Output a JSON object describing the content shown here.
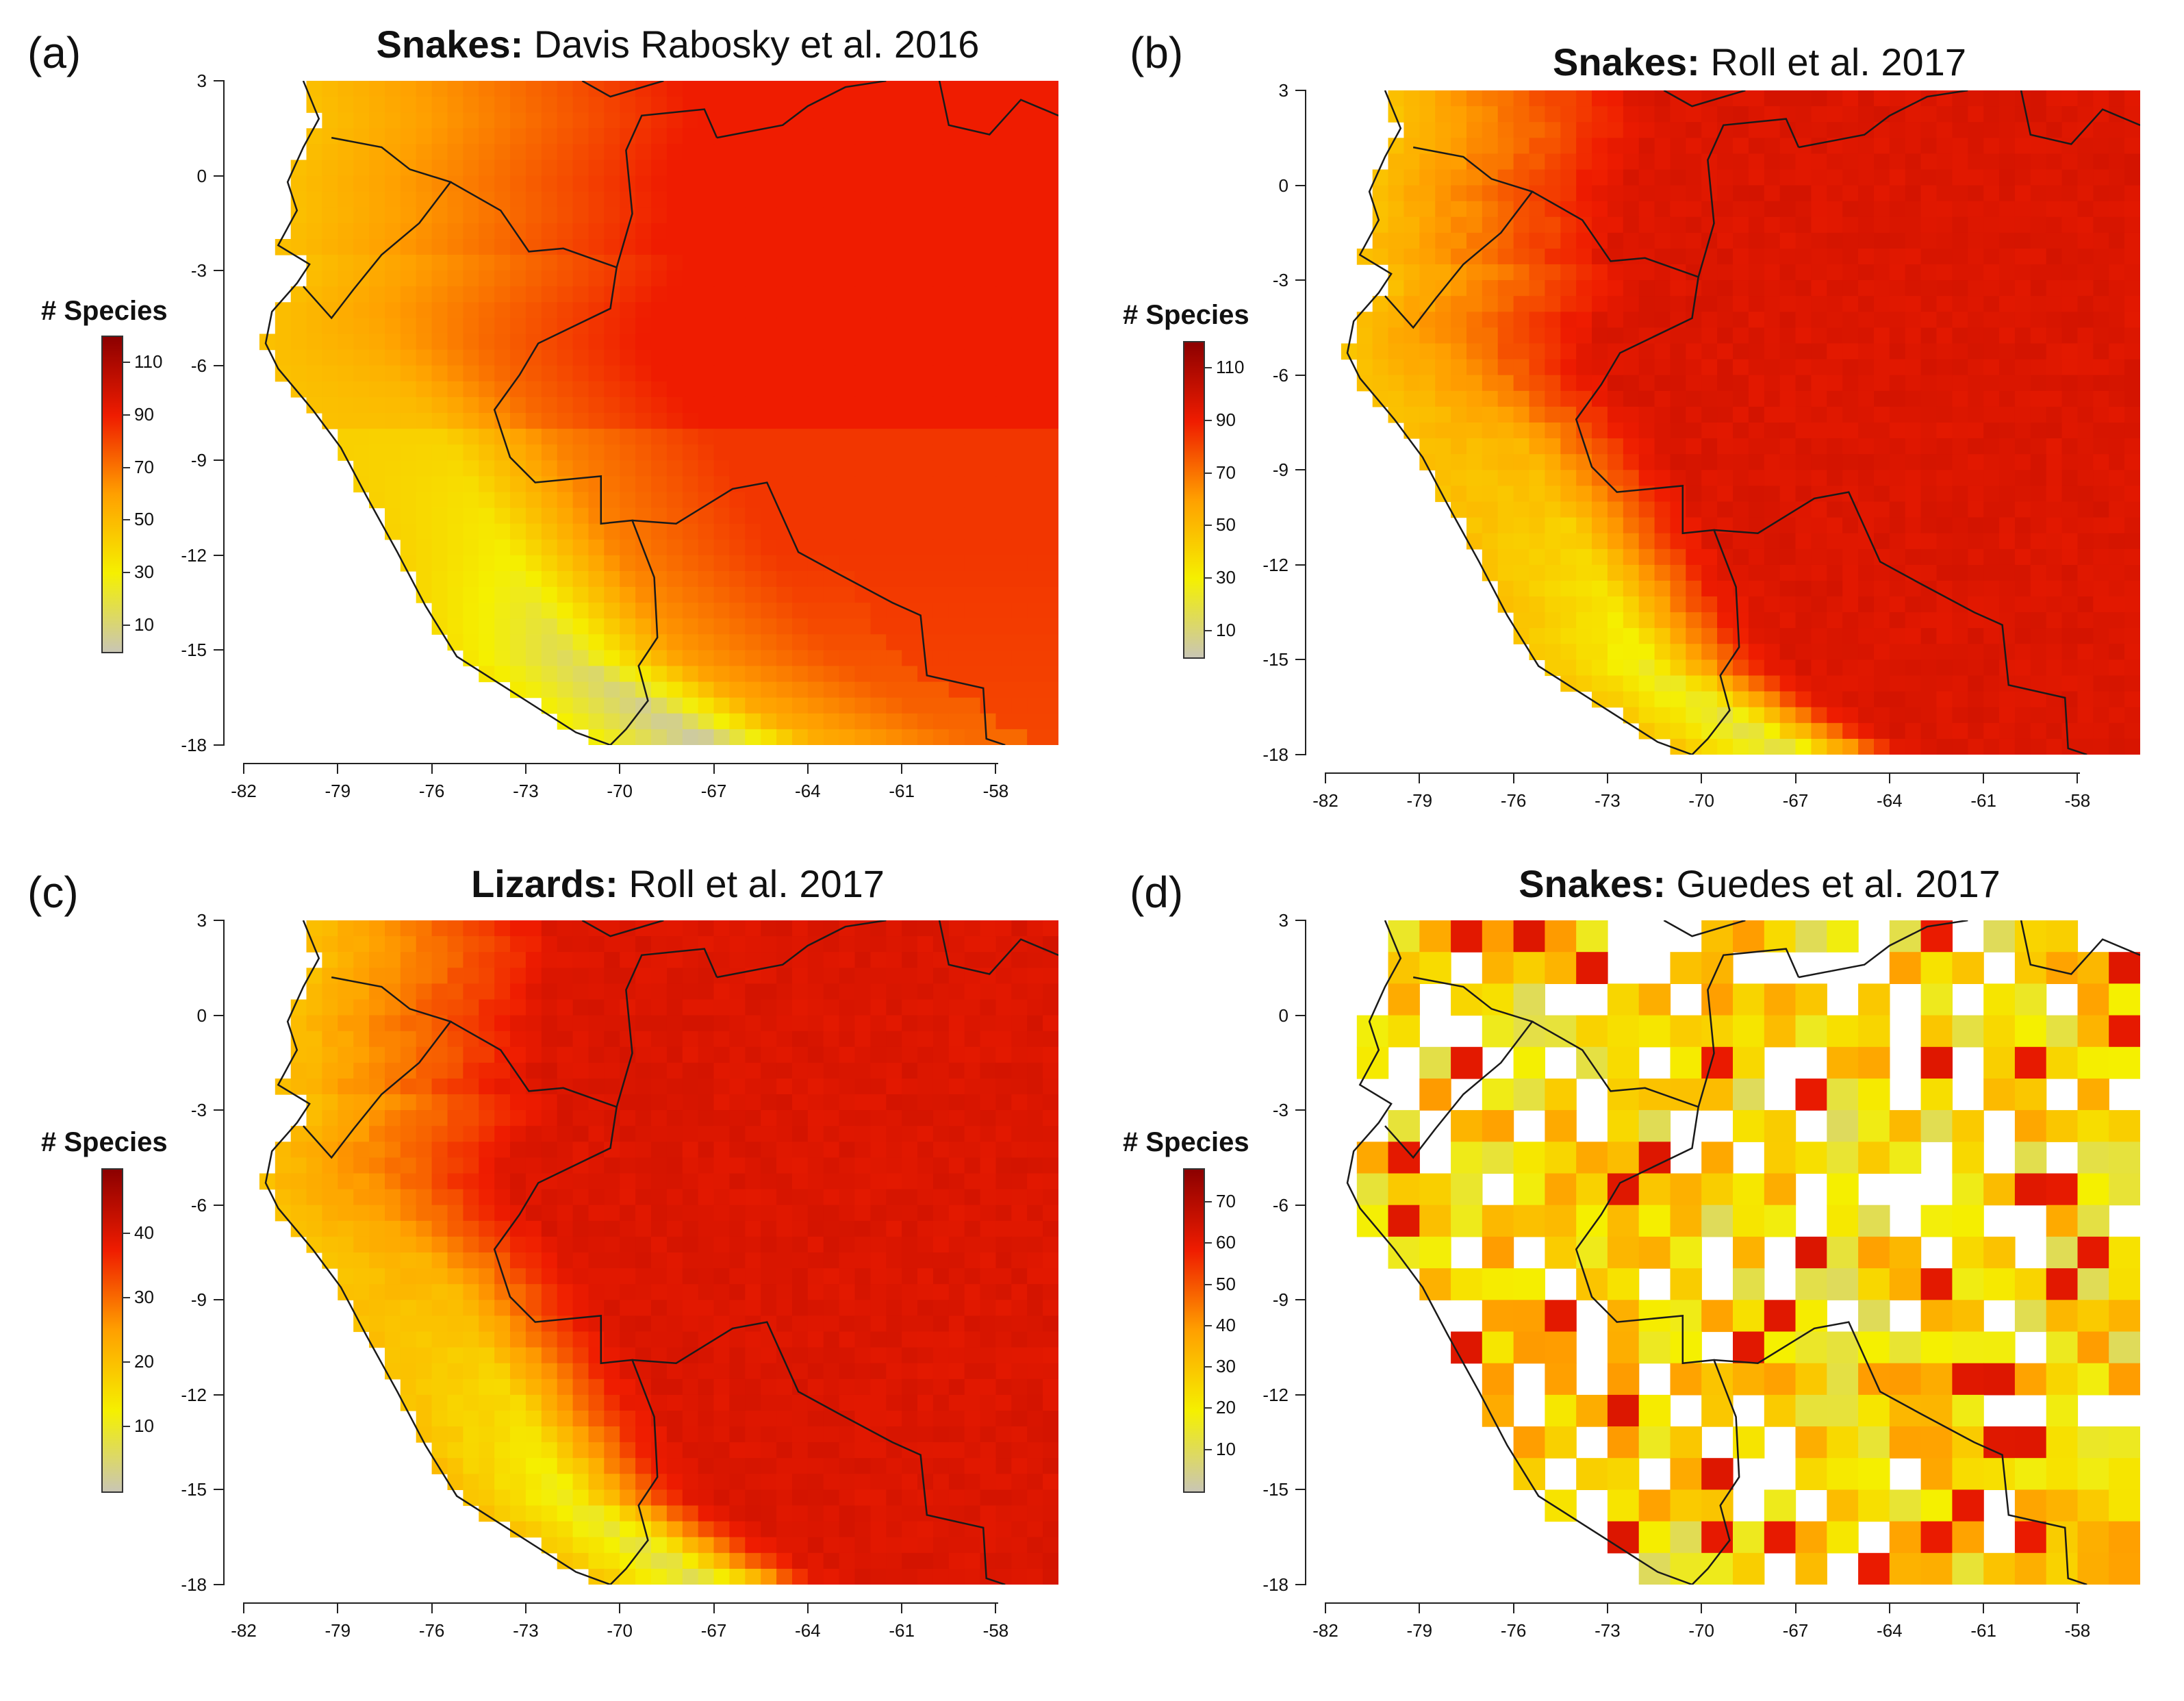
{
  "figure": {
    "panels": [
      {
        "id": "a",
        "label": "(a)",
        "taxon": "Snakes:",
        "source": "Davis Rabosky et al. 2016",
        "legend_title": "# Species",
        "legend_ticks": [
          "110",
          "90",
          "70",
          "50",
          "30",
          "10"
        ],
        "legend_values": [
          110,
          90,
          70,
          50,
          30,
          10
        ],
        "legend_range": [
          0,
          120
        ],
        "style": "smooth",
        "x_ticks": [
          "-82",
          "-79",
          "-76",
          "-73",
          "-70",
          "-67",
          "-64",
          "-61",
          "-58"
        ],
        "y_ticks": [
          "3",
          "0",
          "-3",
          "-6",
          "-9",
          "-12",
          "-15",
          "-18"
        ],
        "xlim": [
          -82,
          -56
        ],
        "ylim": [
          -18,
          3
        ]
      },
      {
        "id": "b",
        "label": "(b)",
        "taxon": "Snakes:",
        "source": "Roll et al. 2017",
        "legend_title": "# Species",
        "legend_ticks": [
          "110",
          "90",
          "70",
          "50",
          "30",
          "10"
        ],
        "legend_values": [
          110,
          90,
          70,
          50,
          30,
          10
        ],
        "legend_range": [
          0,
          120
        ],
        "style": "smooth-red",
        "x_ticks": [
          "-82",
          "-79",
          "-76",
          "-73",
          "-70",
          "-67",
          "-64",
          "-61",
          "-58"
        ],
        "y_ticks": [
          "3",
          "0",
          "-3",
          "-6",
          "-9",
          "-12",
          "-15",
          "-18"
        ],
        "xlim": [
          -82,
          -56
        ],
        "ylim": [
          -18,
          3
        ]
      },
      {
        "id": "c",
        "label": "(c)",
        "taxon": "Lizards:",
        "source": "Roll et al. 2017",
        "legend_title": "# Species",
        "legend_ticks": [
          "40",
          "30",
          "20",
          "10"
        ],
        "legend_values": [
          40,
          30,
          20,
          10
        ],
        "legend_range": [
          0,
          50
        ],
        "style": "smooth-red",
        "x_ticks": [
          "-82",
          "-79",
          "-76",
          "-73",
          "-70",
          "-67",
          "-64",
          "-61",
          "-58"
        ],
        "y_ticks": [
          "3",
          "0",
          "-3",
          "-6",
          "-9",
          "-12",
          "-15",
          "-18"
        ],
        "xlim": [
          -82,
          -56
        ],
        "ylim": [
          -18,
          3
        ]
      },
      {
        "id": "d",
        "label": "(d)",
        "taxon": "Snakes:",
        "source": "Guedes et al. 2017",
        "legend_title": "# Species",
        "legend_ticks": [
          "70",
          "60",
          "50",
          "40",
          "30",
          "20",
          "10"
        ],
        "legend_values": [
          70,
          60,
          50,
          40,
          30,
          20,
          10
        ],
        "legend_range": [
          0,
          78
        ],
        "style": "grid",
        "x_ticks": [
          "-82",
          "-79",
          "-76",
          "-73",
          "-70",
          "-67",
          "-64",
          "-61",
          "-58"
        ],
        "y_ticks": [
          "3",
          "0",
          "-3",
          "-6",
          "-9",
          "-12",
          "-15",
          "-18"
        ],
        "xlim": [
          -82,
          -56
        ],
        "ylim": [
          -18,
          3
        ]
      }
    ],
    "colors": {
      "low": "#c9c6b4",
      "yellow": "#f5f000",
      "orange": "#ffa000",
      "red": "#ef1c00",
      "dark_red": "#8c0000",
      "border": "#1a1a1a"
    }
  }
}
